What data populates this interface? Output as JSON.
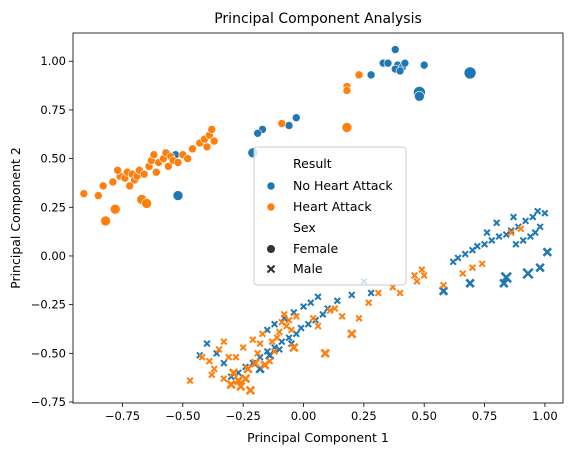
{
  "chart_data": {
    "type": "scatter",
    "title": "Principal Component Analysis",
    "xlabel": "Principal Component 1",
    "ylabel": "Principal Component 2",
    "xlim": [
      -0.955,
      1.075
    ],
    "ylim": [
      -0.755,
      1.145
    ],
    "xticks": [
      -0.75,
      -0.5,
      -0.25,
      0.0,
      0.25,
      0.5,
      0.75,
      1.0
    ],
    "yticks": [
      -0.75,
      -0.5,
      -0.25,
      0.0,
      0.25,
      0.5,
      0.75,
      1.0
    ],
    "xtick_labels": [
      "−0.75",
      "−0.50",
      "−0.25",
      "0.00",
      "0.25",
      "0.50",
      "0.75",
      "1.00"
    ],
    "ytick_labels": [
      "−0.75",
      "−0.50",
      "−0.25",
      "0.00",
      "0.25",
      "0.50",
      "0.75",
      "1.00"
    ],
    "grid": false,
    "legend": {
      "placement": "center",
      "hue_title": "Result",
      "style_title": "Sex",
      "hue_entries": [
        {
          "label": "No Heart Attack",
          "color": "#1f77b4"
        },
        {
          "label": "Heart Attack",
          "color": "#ff7f0e"
        }
      ],
      "style_entries": [
        {
          "label": "Female",
          "marker": "circle"
        },
        {
          "label": "Male",
          "marker": "x"
        }
      ]
    },
    "colors": {
      "No Heart Attack": "#1f77b4",
      "Heart Attack": "#ff7f0e"
    },
    "series": [
      {
        "name": "No Heart Attack",
        "sex": "Female",
        "points": [
          [
            0.38,
            1.06,
            4
          ],
          [
            0.33,
            0.99,
            4
          ],
          [
            0.35,
            0.99,
            4
          ],
          [
            0.39,
            0.98,
            4
          ],
          [
            0.41,
            0.97,
            4
          ],
          [
            0.42,
            0.99,
            4
          ],
          [
            0.38,
            0.96,
            4
          ],
          [
            0.4,
            0.95,
            4
          ],
          [
            0.5,
            0.98,
            4
          ],
          [
            0.28,
            0.93,
            4
          ],
          [
            0.69,
            0.94,
            6
          ],
          [
            0.48,
            0.84,
            6
          ],
          [
            0.48,
            0.82,
            5
          ],
          [
            -0.03,
            0.71,
            4
          ],
          [
            -0.06,
            0.67,
            4
          ],
          [
            -0.17,
            0.65,
            4
          ],
          [
            -0.19,
            0.63,
            4
          ],
          [
            -0.21,
            0.53,
            5
          ],
          [
            -0.52,
            0.31,
            5
          ],
          [
            -0.53,
            0.52,
            4
          ]
        ]
      },
      {
        "name": "Heart Attack",
        "sex": "Female",
        "points": [
          [
            -0.91,
            0.32,
            4
          ],
          [
            -0.83,
            0.36,
            4
          ],
          [
            -0.82,
            0.18,
            5
          ],
          [
            -0.78,
            0.24,
            5
          ],
          [
            -0.79,
            0.38,
            4
          ],
          [
            -0.76,
            0.41,
            4
          ],
          [
            -0.74,
            0.4,
            4
          ],
          [
            -0.73,
            0.43,
            4
          ],
          [
            -0.71,
            0.42,
            4
          ],
          [
            -0.7,
            0.39,
            4
          ],
          [
            -0.69,
            0.41,
            4
          ],
          [
            -0.68,
            0.44,
            4
          ],
          [
            -0.67,
            0.29,
            5
          ],
          [
            -0.65,
            0.27,
            5
          ],
          [
            -0.66,
            0.42,
            4
          ],
          [
            -0.64,
            0.46,
            4
          ],
          [
            -0.63,
            0.49,
            4
          ],
          [
            -0.62,
            0.52,
            4
          ],
          [
            -0.6,
            0.48,
            4
          ],
          [
            -0.58,
            0.5,
            4
          ],
          [
            -0.57,
            0.53,
            4
          ],
          [
            -0.55,
            0.51,
            4
          ],
          [
            -0.54,
            0.49,
            4
          ],
          [
            -0.52,
            0.48,
            4
          ],
          [
            -0.5,
            0.52,
            4
          ],
          [
            -0.48,
            0.5,
            4
          ],
          [
            -0.46,
            0.55,
            4
          ],
          [
            -0.43,
            0.58,
            4
          ],
          [
            -0.41,
            0.6,
            4
          ],
          [
            -0.39,
            0.62,
            4
          ],
          [
            -0.38,
            0.65,
            4
          ],
          [
            -0.4,
            0.56,
            4
          ],
          [
            -0.37,
            0.59,
            4
          ],
          [
            -0.85,
            0.31,
            4
          ],
          [
            -0.77,
            0.44,
            4
          ],
          [
            -0.72,
            0.36,
            4
          ],
          [
            -0.61,
            0.43,
            4
          ],
          [
            -0.56,
            0.46,
            4
          ],
          [
            -0.09,
            0.68,
            4
          ],
          [
            0.18,
            0.87,
            4
          ],
          [
            0.18,
            0.85,
            4
          ],
          [
            0.23,
            0.93,
            4
          ],
          [
            0.18,
            0.66,
            5
          ]
        ]
      },
      {
        "name": "No Heart Attack",
        "sex": "Male",
        "points": [
          [
            0.97,
            0.23,
            3
          ],
          [
            1.0,
            0.22,
            3
          ],
          [
            0.95,
            0.2,
            3
          ],
          [
            0.92,
            0.18,
            3
          ],
          [
            0.89,
            0.15,
            3
          ],
          [
            0.86,
            0.13,
            3
          ],
          [
            0.84,
            0.11,
            3
          ],
          [
            0.81,
            0.1,
            3
          ],
          [
            0.78,
            0.08,
            3
          ],
          [
            0.75,
            0.06,
            3
          ],
          [
            0.72,
            0.05,
            3
          ],
          [
            0.7,
            0.03,
            3
          ],
          [
            0.67,
            0.01,
            3
          ],
          [
            0.64,
            -0.01,
            3
          ],
          [
            0.62,
            -0.03,
            3
          ],
          [
            0.98,
            0.15,
            3
          ],
          [
            0.96,
            0.12,
            3
          ],
          [
            0.94,
            0.1,
            3
          ],
          [
            0.91,
            0.08,
            3
          ],
          [
            0.88,
            0.06,
            3
          ],
          [
            1.01,
            0.02,
            4
          ],
          [
            0.98,
            -0.06,
            4
          ],
          [
            0.93,
            -0.09,
            5
          ],
          [
            0.84,
            -0.11,
            5
          ],
          [
            0.83,
            -0.14,
            4
          ],
          [
            0.69,
            -0.14,
            4
          ],
          [
            0.58,
            -0.18,
            4
          ],
          [
            0.87,
            0.2,
            3
          ],
          [
            0.8,
            0.17,
            3
          ],
          [
            0.76,
            0.12,
            3
          ],
          [
            0.25,
            -0.13,
            3
          ],
          [
            0.28,
            -0.19,
            3
          ],
          [
            0.2,
            -0.2,
            3
          ],
          [
            0.14,
            -0.23,
            3
          ],
          [
            0.1,
            -0.27,
            3
          ],
          [
            0.08,
            -0.3,
            3
          ],
          [
            0.05,
            -0.33,
            3
          ],
          [
            0.02,
            -0.35,
            3
          ],
          [
            -0.01,
            -0.37,
            3
          ],
          [
            -0.03,
            -0.4,
            3
          ],
          [
            -0.06,
            -0.42,
            3
          ],
          [
            -0.09,
            -0.44,
            3
          ],
          [
            -0.12,
            -0.47,
            3
          ],
          [
            -0.15,
            -0.49,
            3
          ],
          [
            -0.18,
            -0.52,
            3
          ],
          [
            -0.21,
            -0.55,
            3
          ],
          [
            -0.24,
            -0.57,
            3
          ],
          [
            -0.27,
            -0.6,
            3
          ],
          [
            -0.3,
            -0.62,
            3
          ],
          [
            -0.33,
            -0.55,
            3
          ],
          [
            -0.36,
            -0.5,
            3
          ],
          [
            -0.4,
            -0.45,
            3
          ],
          [
            -0.43,
            -0.51,
            3
          ],
          [
            -0.15,
            -0.38,
            3
          ],
          [
            -0.12,
            -0.35,
            3
          ],
          [
            -0.08,
            -0.32,
            3
          ],
          [
            -0.04,
            -0.29,
            3
          ],
          [
            0.0,
            -0.26,
            3
          ],
          [
            0.03,
            -0.24,
            3
          ],
          [
            0.06,
            -0.21,
            3
          ],
          [
            -0.18,
            -0.58,
            4
          ],
          [
            -0.14,
            -0.51,
            4
          ],
          [
            -0.1,
            -0.48,
            3
          ],
          [
            -0.05,
            -0.45,
            3
          ]
        ]
      },
      {
        "name": "Heart Attack",
        "sex": "Male",
        "points": [
          [
            -0.47,
            -0.64,
            3
          ],
          [
            -0.38,
            -0.61,
            3
          ],
          [
            -0.35,
            -0.48,
            3
          ],
          [
            -0.33,
            -0.44,
            3
          ],
          [
            -0.31,
            -0.52,
            3
          ],
          [
            -0.29,
            -0.6,
            4
          ],
          [
            -0.27,
            -0.64,
            4
          ],
          [
            -0.26,
            -0.67,
            4
          ],
          [
            -0.24,
            -0.63,
            4
          ],
          [
            -0.23,
            -0.58,
            4
          ],
          [
            -0.22,
            -0.69,
            4
          ],
          [
            -0.2,
            -0.55,
            4
          ],
          [
            -0.19,
            -0.5,
            3
          ],
          [
            -0.18,
            -0.45,
            3
          ],
          [
            -0.17,
            -0.4,
            3
          ],
          [
            -0.16,
            -0.56,
            4
          ],
          [
            -0.14,
            -0.54,
            3
          ],
          [
            -0.13,
            -0.44,
            3
          ],
          [
            -0.11,
            -0.42,
            3
          ],
          [
            -0.1,
            -0.39,
            3
          ],
          [
            -0.09,
            -0.34,
            3
          ],
          [
            -0.08,
            -0.3,
            3
          ],
          [
            -0.07,
            -0.36,
            3
          ],
          [
            -0.06,
            -0.33,
            3
          ],
          [
            -0.05,
            -0.38,
            3
          ],
          [
            -0.04,
            -0.47,
            4
          ],
          [
            -0.03,
            -0.31,
            3
          ],
          [
            0.04,
            -0.32,
            3
          ],
          [
            0.06,
            -0.36,
            3
          ],
          [
            0.09,
            -0.5,
            4
          ],
          [
            0.11,
            -0.28,
            3
          ],
          [
            0.16,
            -0.31,
            3
          ],
          [
            0.2,
            -0.4,
            4
          ],
          [
            0.23,
            -0.32,
            3
          ],
          [
            0.31,
            -0.19,
            3
          ],
          [
            0.4,
            -0.19,
            3
          ],
          [
            0.46,
            -0.1,
            3
          ],
          [
            0.47,
            -0.13,
            3
          ],
          [
            0.49,
            -0.07,
            3
          ],
          [
            0.58,
            -0.15,
            3
          ],
          [
            0.66,
            -0.09,
            3
          ],
          [
            0.7,
            -0.06,
            3
          ],
          [
            0.74,
            -0.04,
            3
          ],
          [
            -0.39,
            -0.54,
            3
          ],
          [
            -0.37,
            -0.58,
            3
          ],
          [
            -0.28,
            -0.52,
            3
          ],
          [
            -0.25,
            -0.47,
            3
          ],
          [
            -0.21,
            -0.43,
            3
          ],
          [
            -0.12,
            -0.49,
            3
          ],
          [
            -0.3,
            -0.66,
            4
          ],
          [
            -0.33,
            -0.63,
            3
          ],
          [
            -0.42,
            -0.52,
            3
          ],
          [
            0.13,
            -0.27,
            3
          ],
          [
            0.27,
            -0.24,
            3
          ],
          [
            0.37,
            -0.16,
            3
          ],
          [
            0.5,
            -0.1,
            3
          ],
          [
            0.86,
            0.12,
            3
          ],
          [
            0.9,
            0.14,
            3
          ]
        ]
      }
    ]
  }
}
